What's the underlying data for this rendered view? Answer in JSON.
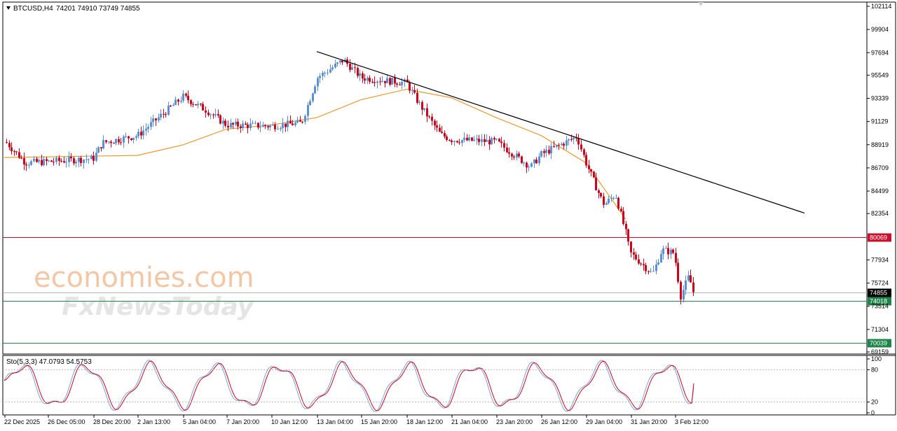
{
  "header": {
    "symbol": "BTCUSD,H4",
    "ohlc": "74201 74910 73749 74855",
    "menu_icon": "triangle-down-icon"
  },
  "price_axis": {
    "ticks": [
      "102114",
      "99904",
      "97694",
      "95549",
      "93339",
      "91129",
      "88919",
      "86709",
      "84499",
      "82354",
      "80069",
      "77934",
      "75724",
      "74855",
      "74018",
      "73514",
      "71304",
      "70039",
      "69159"
    ]
  },
  "levels": [
    {
      "price": 80069,
      "label": "80069",
      "color": "#c8102e"
    },
    {
      "price": 74855,
      "label": "74855",
      "color": "#000000"
    },
    {
      "price": 74018,
      "label": "74018",
      "color": "#1e8449"
    },
    {
      "price": 70039,
      "label": "70039",
      "color": "#1e8449"
    }
  ],
  "time_axis": {
    "labels": [
      "22 Dec 2025",
      "26 Dec 05:00",
      "28 Dec 20:00",
      "2 Jan 13:00",
      "5 Jan 04:00",
      "7 Jan 20:00",
      "10 Jan 12:00",
      "13 Jan 04:00",
      "15 Jan 20:00",
      "18 Jan 12:00",
      "21 Jan 04:00",
      "23 Jan 20:00",
      "26 Jan 12:00",
      "29 Jan 04:00",
      "31 Jan 20:00",
      "3 Feb 12:00"
    ]
  },
  "watermark": {
    "line1": "economies.com",
    "line2": "FxNewsToday"
  },
  "stochastic": {
    "label": "Sto(5,3,3) 47.0793 54.5753",
    "ticks": [
      "100",
      "80",
      "20",
      "0"
    ]
  },
  "colors": {
    "bull": "#5b8fd6",
    "bear": "#d0021b",
    "ma": "#e89a2c",
    "trend": "#000000"
  },
  "chart_data": {
    "type": "candlestick",
    "title": "BTCUSD,H4",
    "ylim": [
      69159,
      102114
    ],
    "anchors": [
      {
        "t": "22 Dec 2025",
        "close": 89300
      },
      {
        "t": "24 Dec",
        "close": 87200
      },
      {
        "t": "26 Dec 05:00",
        "close": 87300
      },
      {
        "t": "28 Dec 20:00",
        "close": 87600
      },
      {
        "t": "29 Dec",
        "close": 89100
      },
      {
        "t": "2 Jan 13:00",
        "close": 89800
      },
      {
        "t": "5 Jan 04:00",
        "close": 93500
      },
      {
        "t": "6 Jan",
        "close": 92200
      },
      {
        "t": "7 Jan 20:00",
        "close": 90800
      },
      {
        "t": "10 Jan 12:00",
        "close": 90700
      },
      {
        "t": "12 Jan",
        "close": 91000
      },
      {
        "t": "13 Jan 04:00",
        "close": 95300
      },
      {
        "t": "14 Jan",
        "close": 97000
      },
      {
        "t": "15 Jan 20:00",
        "close": 95300
      },
      {
        "t": "18 Jan 12:00",
        "close": 94800
      },
      {
        "t": "19 Jan",
        "close": 92900
      },
      {
        "t": "20 Jan",
        "close": 89900
      },
      {
        "t": "21 Jan 04:00",
        "close": 89400
      },
      {
        "t": "23 Jan 20:00",
        "close": 89200
      },
      {
        "t": "25 Jan",
        "close": 86800
      },
      {
        "t": "26 Jan 12:00",
        "close": 88000
      },
      {
        "t": "28 Jan",
        "close": 89700
      },
      {
        "t": "29 Jan 04:00",
        "close": 87200
      },
      {
        "t": "29 Jan 12:00",
        "close": 84000
      },
      {
        "t": "30 Jan",
        "close": 83200
      },
      {
        "t": "30 Jan 16:00",
        "close": 84200
      },
      {
        "t": "31 Jan 04:00",
        "close": 80500
      },
      {
        "t": "31 Jan 12:00",
        "close": 78600
      },
      {
        "t": "31 Jan 20:00",
        "close": 76600
      },
      {
        "t": "2 Feb",
        "close": 78900
      },
      {
        "t": "2 Feb 12:00",
        "close": 78600
      },
      {
        "t": "3 Feb",
        "close": 74500
      },
      {
        "t": "3 Feb 04:00",
        "close": 76300
      },
      {
        "t": "3 Feb 12:00",
        "close": 74855
      }
    ],
    "moving_average": [
      {
        "t": "22 Dec 2025",
        "value": 87700
      },
      {
        "t": "2 Jan 13:00",
        "value": 87900
      },
      {
        "t": "5 Jan 04:00",
        "value": 88900
      },
      {
        "t": "7 Jan 20:00",
        "value": 90400
      },
      {
        "t": "10 Jan 12:00",
        "value": 90800
      },
      {
        "t": "13 Jan 04:00",
        "value": 91500
      },
      {
        "t": "15 Jan 20:00",
        "value": 93200
      },
      {
        "t": "18 Jan 12:00",
        "value": 94200
      },
      {
        "t": "21 Jan 04:00",
        "value": 93400
      },
      {
        "t": "23 Jan 20:00",
        "value": 91500
      },
      {
        "t": "26 Jan 12:00",
        "value": 89800
      },
      {
        "t": "29 Jan 04:00",
        "value": 87200
      },
      {
        "t": "31 Jan 04:00",
        "value": 81800
      }
    ],
    "trendline": [
      {
        "t": "13 Jan 04:00",
        "value": 97800
      },
      {
        "t": "4 Feb",
        "value": 82400
      }
    ],
    "horizontal_levels": [
      80069,
      74855,
      74018,
      70039
    ],
    "stochastic": {
      "k": 47.0793,
      "d": 54.5753,
      "levels": [
        80,
        20
      ],
      "ylim": [
        0,
        100
      ]
    }
  }
}
